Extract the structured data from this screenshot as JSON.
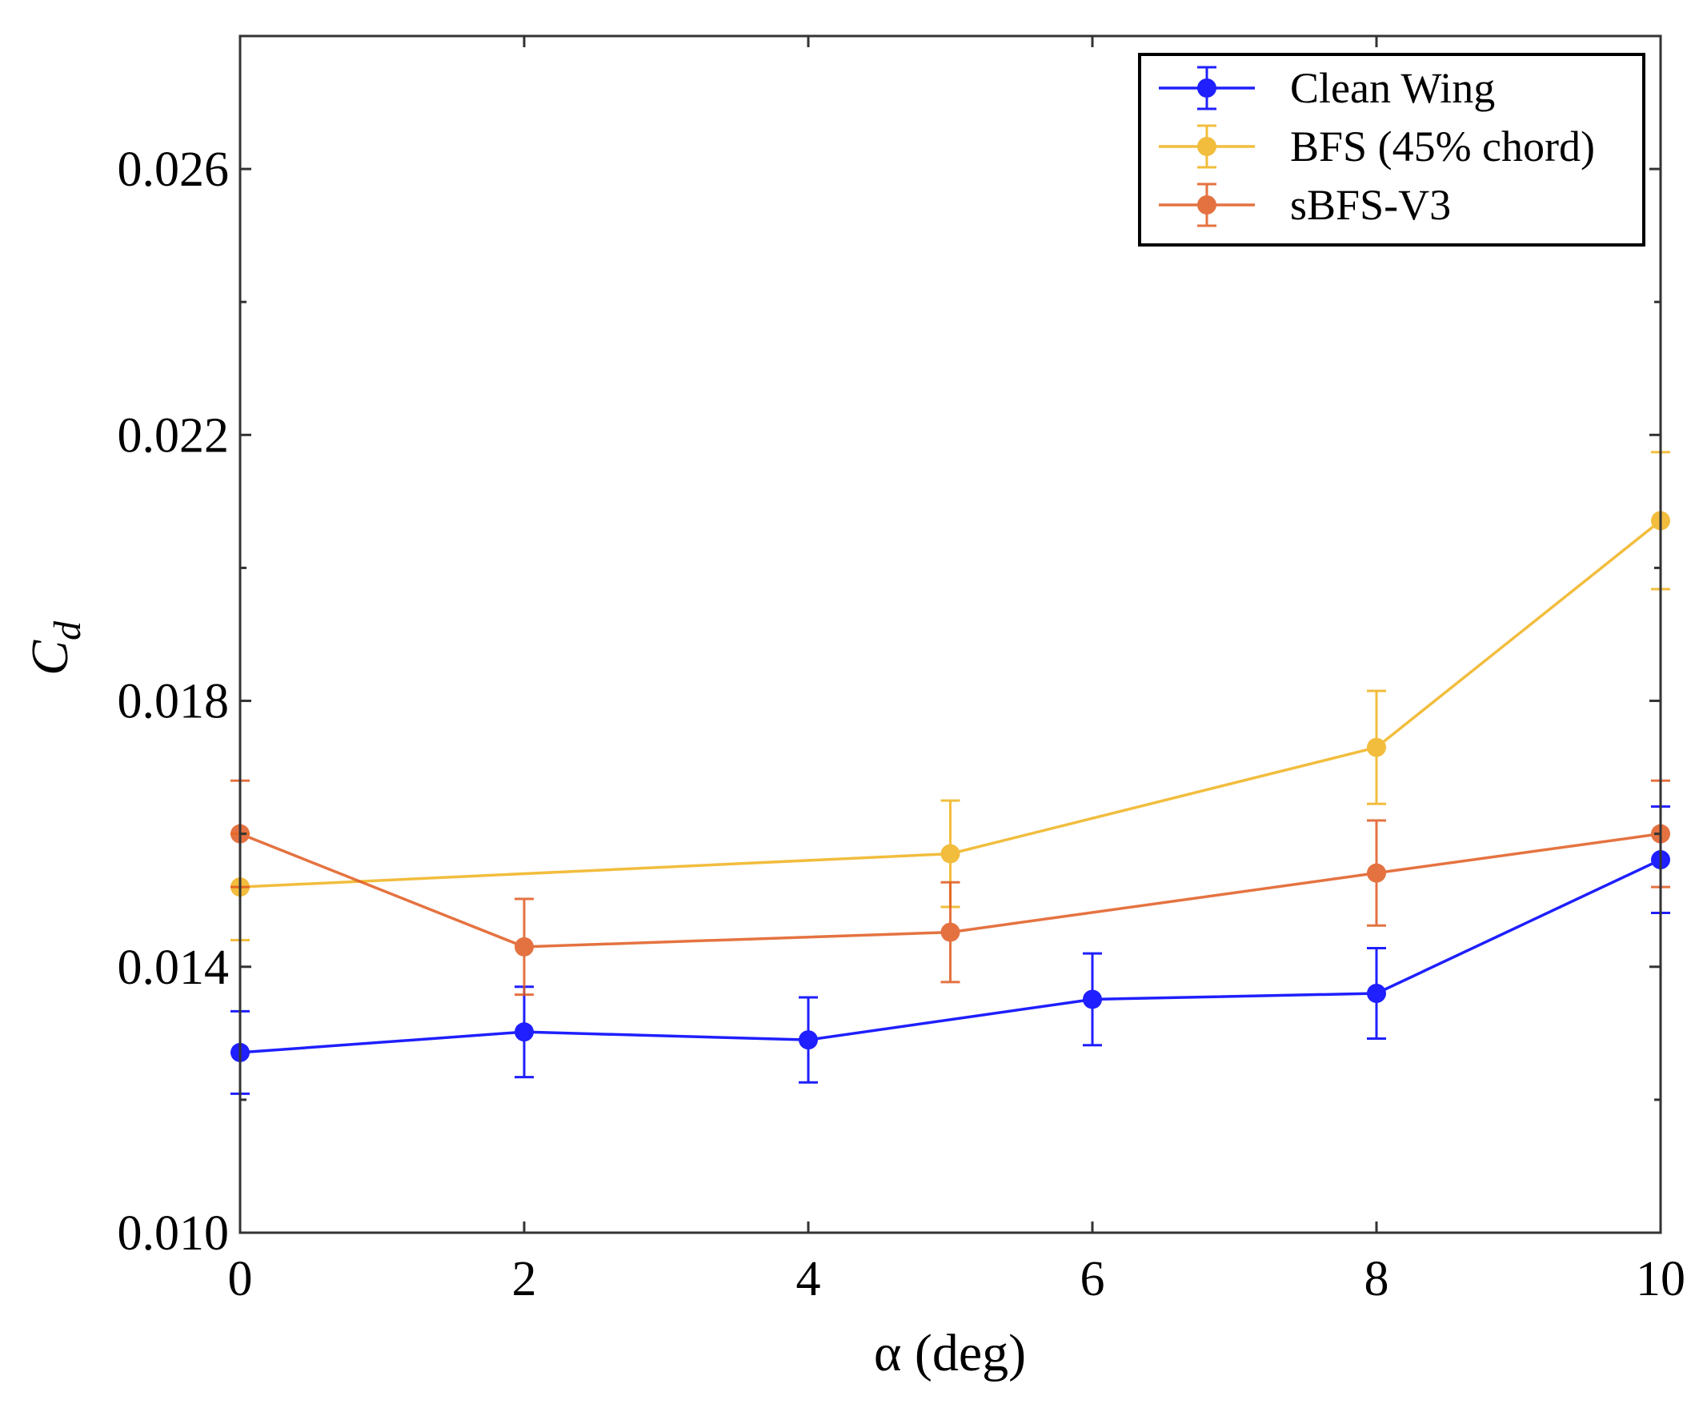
{
  "chart_data": {
    "type": "line",
    "title": "",
    "xlabel": "α (deg)",
    "ylabel": "C",
    "ylabel_subscript": "d",
    "xlim": [
      0,
      10
    ],
    "ylim": [
      0.01,
      0.028
    ],
    "xticks": [
      0,
      2,
      4,
      6,
      8,
      10
    ],
    "xtick_labels": [
      "0",
      "2",
      "4",
      "6",
      "8",
      "10"
    ],
    "yticks": [
      0.01,
      0.014,
      0.018,
      0.022,
      0.026
    ],
    "ytick_labels": [
      "0.010",
      "0.014",
      "0.018",
      "0.022",
      "0.026"
    ],
    "yminor_ticks": [
      0.012,
      0.016,
      0.02,
      0.024
    ],
    "grid": false,
    "legend_position": "top-right",
    "series": [
      {
        "name": "Clean Wing",
        "color": "#1f1fff",
        "opacity": 1.0,
        "x": [
          0,
          2,
          4,
          6,
          8,
          10
        ],
        "y": [
          0.01271,
          0.01302,
          0.0129,
          0.01351,
          0.0136,
          0.01561
        ],
        "err": [
          0.00062,
          0.00068,
          0.00064,
          0.00069,
          0.00068,
          0.0008
        ]
      },
      {
        "name": "BFS (45% chord)",
        "color": "#f0b21c",
        "opacity": 0.85,
        "x": [
          0,
          5,
          8,
          10
        ],
        "y": [
          0.0152,
          0.0157,
          0.0173,
          0.02071
        ],
        "err": [
          0.0008,
          0.0008,
          0.00085,
          0.00103
        ]
      },
      {
        "name": "sBFS-V3",
        "color": "#e05a20",
        "opacity": 0.85,
        "x": [
          0,
          2,
          5,
          8,
          10
        ],
        "y": [
          0.016,
          0.0143,
          0.01452,
          0.01541,
          0.016
        ],
        "err": [
          0.0008,
          0.00072,
          0.00075,
          0.00079,
          0.0008
        ]
      }
    ]
  }
}
